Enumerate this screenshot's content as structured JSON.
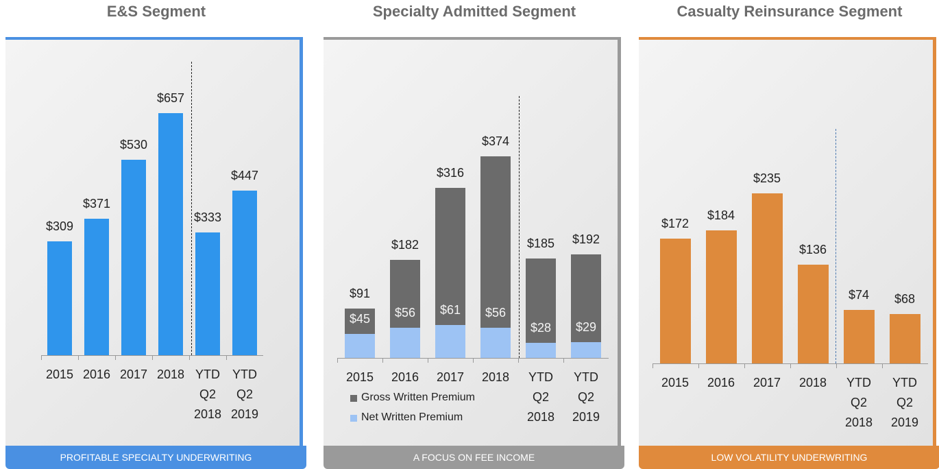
{
  "chart_data": [
    {
      "type": "bar",
      "title": "E&S Segment",
      "categories": [
        "2015",
        "2016",
        "2017",
        "2018",
        "YTD Q2 2018",
        "YTD Q2 2019"
      ],
      "values": [
        309,
        371,
        530,
        657,
        333,
        447
      ],
      "value_labels": [
        "$309",
        "$371",
        "$530",
        "$657",
        "$333",
        "$447"
      ],
      "color": "#2f95ec",
      "footer": "PROFITABLE SPECIALTY UNDERWRITING"
    },
    {
      "type": "bar",
      "title": "Specialty Admitted Segment",
      "categories": [
        "2015",
        "2016",
        "2017",
        "2018",
        "YTD Q2 2018",
        "YTD Q2 2019"
      ],
      "series": [
        {
          "name": "Gross Written Premium",
          "color": "#6b6b6b",
          "values": [
            91,
            182,
            316,
            374,
            185,
            192
          ],
          "value_labels": [
            "$91",
            "$182",
            "$316",
            "$374",
            "$185",
            "$192"
          ]
        },
        {
          "name": "Net Written Premium",
          "color": "#9dc3f4",
          "values": [
            45,
            56,
            61,
            56,
            28,
            29
          ],
          "value_labels": [
            "$45",
            "$56",
            "$61",
            "$56",
            "$28",
            "$29"
          ]
        }
      ],
      "legend": true,
      "footer": "A FOCUS ON FEE INCOME"
    },
    {
      "type": "bar",
      "title": "Casualty Reinsurance Segment",
      "categories": [
        "2015",
        "2016",
        "2017",
        "2018",
        "YTD Q2 2018",
        "YTD Q2 2019"
      ],
      "values": [
        172,
        184,
        235,
        136,
        74,
        68
      ],
      "value_labels": [
        "$172",
        "$184",
        "$235",
        "$136",
        "$74",
        "$68"
      ],
      "color": "#de8a3c",
      "footer": "LOW VOLATILITY UNDERWRITING"
    }
  ]
}
